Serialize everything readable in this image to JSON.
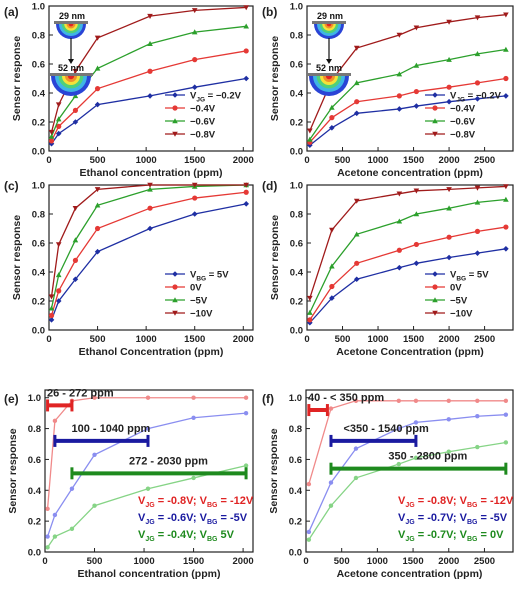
{
  "figure": {
    "background": "#ffffff",
    "panels": [
      {
        "letter": "(a)"
      },
      {
        "letter": "(b)"
      },
      {
        "letter": "(c)"
      },
      {
        "letter": "(d)"
      },
      {
        "letter": "(e)"
      },
      {
        "letter": "(f)"
      }
    ]
  },
  "chart_data": [
    {
      "panel": "(a)",
      "type": "line",
      "xlabel": "Ethanol concentration (ppm)",
      "ylabel": "Sensor response",
      "xlim": [
        0,
        2100
      ],
      "ylim": [
        0,
        1.0
      ],
      "xticks": [
        0,
        500,
        1000,
        1500,
        2000
      ],
      "yticks": [
        0.0,
        0.2,
        0.4,
        0.6,
        0.8,
        1.0
      ],
      "x": [
        26,
        100,
        272,
        500,
        1040,
        1500,
        2030
      ],
      "series": [
        {
          "name": "VJG = −0.2V",
          "color": "#1f2fa3",
          "marker": "diamond",
          "values": [
            0.05,
            0.12,
            0.2,
            0.32,
            0.38,
            0.44,
            0.5
          ]
        },
        {
          "name": "−0.4V",
          "color": "#e53935",
          "marker": "circle",
          "values": [
            0.07,
            0.17,
            0.28,
            0.43,
            0.55,
            0.63,
            0.69
          ]
        },
        {
          "name": "−0.6V",
          "color": "#2ca02c",
          "marker": "triangle-up",
          "values": [
            0.1,
            0.22,
            0.38,
            0.57,
            0.74,
            0.82,
            0.86
          ]
        },
        {
          "name": "−0.8V",
          "color": "#a01b1b",
          "marker": "triangle-down",
          "values": [
            0.13,
            0.32,
            0.55,
            0.78,
            0.93,
            0.97,
            0.99
          ]
        }
      ],
      "legend": {
        "prefix": "V",
        "subscript": "JG",
        "placement": "bottom-right"
      },
      "inset": {
        "top_label": "29 nm",
        "bottom_label": "52 nm"
      }
    },
    {
      "panel": "(b)",
      "type": "line",
      "xlabel": "Acetone concentration (ppm)",
      "ylabel": "Sensor response",
      "xlim": [
        0,
        2900
      ],
      "ylim": [
        0,
        1.0
      ],
      "xticks": [
        0,
        500,
        1000,
        1500,
        2000,
        2500
      ],
      "yticks": [
        0.0,
        0.2,
        0.4,
        0.6,
        0.8,
        1.0
      ],
      "x": [
        40,
        350,
        700,
        1300,
        1540,
        2000,
        2400,
        2800
      ],
      "series": [
        {
          "name": "VJG = −0.2V",
          "color": "#1f2fa3",
          "marker": "diamond",
          "values": [
            0.04,
            0.16,
            0.26,
            0.29,
            0.31,
            0.34,
            0.36,
            0.38
          ]
        },
        {
          "name": "−0.4V",
          "color": "#e53935",
          "marker": "circle",
          "values": [
            0.06,
            0.23,
            0.34,
            0.38,
            0.41,
            0.44,
            0.47,
            0.5
          ]
        },
        {
          "name": "−0.6V",
          "color": "#2ca02c",
          "marker": "triangle-up",
          "values": [
            0.08,
            0.3,
            0.47,
            0.53,
            0.59,
            0.63,
            0.67,
            0.7
          ]
        },
        {
          "name": "−0.8V",
          "color": "#a01b1b",
          "marker": "triangle-down",
          "values": [
            0.14,
            0.49,
            0.71,
            0.8,
            0.85,
            0.89,
            0.92,
            0.94
          ]
        }
      ],
      "legend": {
        "prefix": "V",
        "subscript": "JG",
        "placement": "bottom-right"
      },
      "inset": {
        "top_label": "29 nm",
        "bottom_label": "52 nm"
      }
    },
    {
      "panel": "(c)",
      "type": "line",
      "xlabel": "Ethanol Concentration (ppm)",
      "ylabel": "Sensor response",
      "xlim": [
        0,
        2100
      ],
      "ylim": [
        0,
        1.0
      ],
      "xticks": [
        0,
        500,
        1000,
        1500,
        2000
      ],
      "yticks": [
        0.0,
        0.2,
        0.4,
        0.6,
        0.8,
        1.0
      ],
      "x": [
        26,
        100,
        272,
        500,
        1040,
        1500,
        2030
      ],
      "series": [
        {
          "name": "VBG = 5V",
          "color": "#1f2fa3",
          "marker": "diamond",
          "values": [
            0.07,
            0.2,
            0.35,
            0.54,
            0.7,
            0.8,
            0.87
          ]
        },
        {
          "name": "0V",
          "color": "#e53935",
          "marker": "circle",
          "values": [
            0.1,
            0.27,
            0.48,
            0.7,
            0.84,
            0.91,
            0.95
          ]
        },
        {
          "name": "−5V",
          "color": "#2ca02c",
          "marker": "triangle-up",
          "values": [
            0.15,
            0.38,
            0.62,
            0.86,
            0.97,
            0.99,
            1.0
          ]
        },
        {
          "name": "−10V",
          "color": "#a01b1b",
          "marker": "triangle-down",
          "values": [
            0.23,
            0.59,
            0.84,
            0.97,
            1.0,
            1.0,
            1.0
          ]
        }
      ],
      "legend": {
        "prefix": "V",
        "subscript": "BG",
        "placement": "bottom-right"
      }
    },
    {
      "panel": "(d)",
      "type": "line",
      "xlabel": "Acetone Concentration (ppm)",
      "ylabel": "Sensor response",
      "xlim": [
        0,
        2900
      ],
      "ylim": [
        0,
        1.0
      ],
      "xticks": [
        0,
        500,
        1000,
        1500,
        2000,
        2500
      ],
      "yticks": [
        0.0,
        0.2,
        0.4,
        0.6,
        0.8,
        1.0
      ],
      "x": [
        40,
        350,
        700,
        1300,
        1540,
        2000,
        2400,
        2800
      ],
      "series": [
        {
          "name": "VBG = 5V",
          "color": "#1f2fa3",
          "marker": "diamond",
          "values": [
            0.05,
            0.22,
            0.35,
            0.43,
            0.46,
            0.5,
            0.53,
            0.56
          ]
        },
        {
          "name": "0V",
          "color": "#e53935",
          "marker": "circle",
          "values": [
            0.07,
            0.3,
            0.46,
            0.55,
            0.59,
            0.64,
            0.68,
            0.71
          ]
        },
        {
          "name": "−5V",
          "color": "#2ca02c",
          "marker": "triangle-up",
          "values": [
            0.12,
            0.44,
            0.66,
            0.75,
            0.8,
            0.84,
            0.88,
            0.9
          ]
        },
        {
          "name": "−10V",
          "color": "#a01b1b",
          "marker": "triangle-down",
          "values": [
            0.22,
            0.69,
            0.89,
            0.94,
            0.96,
            0.97,
            0.98,
            0.99
          ]
        }
      ],
      "legend": {
        "prefix": "V",
        "subscript": "BG",
        "placement": "bottom-right"
      }
    },
    {
      "panel": "(e)",
      "type": "line",
      "xlabel": "Ethanol concentration (ppm)",
      "ylabel": "Sensor response",
      "xlim": [
        0,
        2100
      ],
      "ylim": [
        0,
        1.05
      ],
      "xticks": [
        0,
        500,
        1000,
        1500,
        2000
      ],
      "yticks": [
        0.0,
        0.2,
        0.4,
        0.6,
        0.8,
        1.0
      ],
      "x": [
        26,
        100,
        272,
        500,
        1040,
        1500,
        2030
      ],
      "series": [
        {
          "color": "#f08a8a",
          "values": [
            0.28,
            0.85,
            0.98,
            1.0,
            1.0,
            1.0,
            1.0
          ]
        },
        {
          "color": "#8a8ef0",
          "values": [
            0.1,
            0.24,
            0.41,
            0.63,
            0.8,
            0.87,
            0.9
          ]
        },
        {
          "color": "#86d486",
          "values": [
            0.03,
            0.1,
            0.15,
            0.3,
            0.41,
            0.48,
            0.56
          ]
        }
      ],
      "ranges": [
        {
          "label": "26 - 272 ppm",
          "color": "#e02424",
          "from": 26,
          "to": 272,
          "y": 0.95
        },
        {
          "label": "100 - 1040 ppm",
          "color": "#1a1aa0",
          "from": 100,
          "to": 1040,
          "y": 0.72
        },
        {
          "label": "272 - 2030 ppm",
          "color": "#1e8a1e",
          "from": 272,
          "to": 2030,
          "y": 0.51
        }
      ],
      "conditions": [
        {
          "color": "#e02424",
          "parts": [
            [
              "V",
              "JG",
              " = -0.8V; "
            ],
            [
              "V",
              "BG",
              " = -12V"
            ]
          ]
        },
        {
          "color": "#1a1aa0",
          "parts": [
            [
              "V",
              "JG",
              " = -0.6V; "
            ],
            [
              "V",
              "BG",
              " = -5V"
            ]
          ]
        },
        {
          "color": "#1e8a1e",
          "parts": [
            [
              "V",
              "JG",
              " = -0.4V; "
            ],
            [
              "V",
              "BG",
              " 5V"
            ]
          ]
        }
      ]
    },
    {
      "panel": "(f)",
      "type": "line",
      "xlabel": "Acetone concentration (ppm)",
      "ylabel": "Sensor response",
      "xlim": [
        0,
        2900
      ],
      "ylim": [
        0,
        1.05
      ],
      "xticks": [
        0,
        500,
        1000,
        1500,
        2000,
        2500
      ],
      "yticks": [
        0.4,
        0.6,
        0.8,
        1.0
      ],
      "yticks_small": [
        0.0,
        0.2
      ],
      "x": [
        40,
        350,
        700,
        1300,
        1540,
        2000,
        2400,
        2800
      ],
      "series": [
        {
          "color": "#f08a8a",
          "values": [
            0.44,
            0.93,
            0.98,
            0.98,
            0.98,
            0.98,
            0.98,
            0.98
          ]
        },
        {
          "color": "#8a8ef0",
          "values": [
            0.13,
            0.45,
            0.67,
            0.8,
            0.84,
            0.86,
            0.88,
            0.89
          ]
        },
        {
          "color": "#86d486",
          "values": [
            0.08,
            0.3,
            0.48,
            0.57,
            0.61,
            0.65,
            0.68,
            0.71
          ]
        }
      ],
      "ranges": [
        {
          "label": "40 - < 350 ppm",
          "color": "#e02424",
          "from": 40,
          "to": 300,
          "y": 0.92
        },
        {
          "label": "<350 - 1540 ppm",
          "color": "#1a1aa0",
          "from": 350,
          "to": 1540,
          "y": 0.72
        },
        {
          "label": "350 - 2800 ppm",
          "color": "#1e8a1e",
          "from": 350,
          "to": 2800,
          "y": 0.54
        }
      ],
      "conditions": [
        {
          "color": "#e02424",
          "parts": [
            [
              "V",
              "JG",
              " = -0.8V; "
            ],
            [
              "V",
              "BG",
              " = -12V"
            ]
          ]
        },
        {
          "color": "#1a1aa0",
          "parts": [
            [
              "V",
              "JG",
              " = -0.7V; "
            ],
            [
              "V",
              "BG",
              " = -5V"
            ]
          ]
        },
        {
          "color": "#1e8a1e",
          "parts": [
            [
              "V",
              "JG",
              " = -0.7V; "
            ],
            [
              "V",
              "BG",
              " = 0V"
            ]
          ]
        }
      ]
    }
  ]
}
